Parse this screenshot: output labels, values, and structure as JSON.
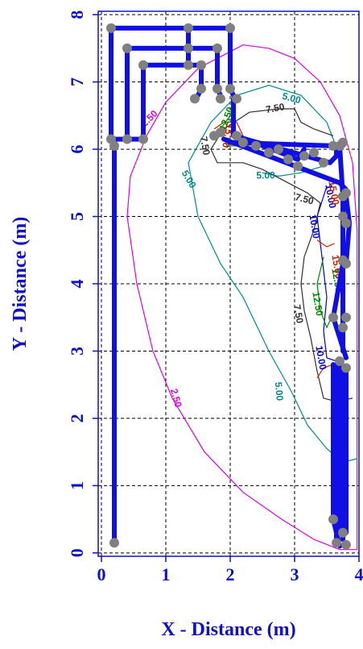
{
  "chart_data": {
    "type": "contour",
    "title": "",
    "xlabel": "X - Distance (m)",
    "ylabel": "Y - Distance (m)",
    "xlim": [
      -0.05,
      4.0
    ],
    "ylim": [
      -0.05,
      8.05
    ],
    "x_ticks": [
      "0",
      "1",
      "2",
      "3",
      "4"
    ],
    "y_ticks": [
      "0",
      "1",
      "2",
      "3",
      "4",
      "5",
      "6",
      "7",
      "8"
    ],
    "grid": true,
    "grid_style": "dashed",
    "colors": {
      "axis": "#1010c8",
      "wire": "#1010e6",
      "node": "#808080",
      "grid": "#000000",
      "contour_2_5": "#e000e0",
      "contour_5_0": "#008b8b",
      "contour_7_5": "#303030",
      "contour_10_0": "#0000dd",
      "contour_12_5": "#008800",
      "contour_15_0": "#cc2200"
    },
    "contour_levels": [
      "2.50",
      "5.00",
      "7.50",
      "10.00",
      "12.50",
      "15.00"
    ],
    "contours": [
      {
        "level": "2.50",
        "color_key": "contour_2_5",
        "points": [
          [
            2.2,
            7.55
          ],
          [
            2.6,
            7.5
          ],
          [
            3.0,
            7.35
          ],
          [
            3.4,
            7.0
          ],
          [
            3.7,
            6.5
          ],
          [
            3.9,
            5.8
          ],
          [
            3.97,
            4.8
          ],
          [
            3.97,
            3.0
          ],
          [
            3.97,
            0.05
          ],
          [
            3.7,
            0.05
          ],
          [
            3.3,
            0.2
          ],
          [
            2.8,
            0.5
          ],
          [
            2.2,
            0.9
          ],
          [
            1.6,
            1.5
          ],
          [
            1.1,
            2.3
          ],
          [
            0.8,
            3.0
          ],
          [
            0.55,
            4.0
          ],
          [
            0.4,
            5.0
          ],
          [
            0.45,
            5.6
          ],
          [
            0.7,
            6.2
          ],
          [
            1.0,
            6.7
          ],
          [
            1.5,
            7.2
          ],
          [
            2.2,
            7.55
          ]
        ]
      },
      {
        "level": "5.00",
        "color_key": "contour_5_0",
        "points": [
          [
            3.7,
            5.9
          ],
          [
            3.5,
            6.4
          ],
          [
            3.1,
            6.8
          ],
          [
            2.6,
            6.95
          ],
          [
            2.1,
            6.8
          ],
          [
            1.7,
            6.4
          ],
          [
            1.35,
            5.8
          ],
          [
            1.5,
            5.0
          ],
          [
            1.85,
            4.3
          ],
          [
            2.2,
            3.8
          ],
          [
            2.6,
            3.0
          ],
          [
            2.95,
            2.4
          ],
          [
            3.2,
            1.9
          ],
          [
            3.5,
            1.55
          ],
          [
            3.75,
            1.35
          ],
          [
            3.97,
            1.4
          ]
        ]
      },
      {
        "level": "5.00",
        "color_key": "contour_5_0",
        "points": [
          [
            2.5,
            5.65
          ],
          [
            2.75,
            5.6
          ],
          [
            3.1,
            5.65
          ],
          [
            3.45,
            5.75
          ]
        ]
      },
      {
        "level": "7.50",
        "color_key": "contour_7_5",
        "points": [
          [
            3.6,
            6.2
          ],
          [
            3.3,
            6.3
          ],
          [
            3.1,
            6.4
          ],
          [
            3.0,
            6.6
          ],
          [
            2.75,
            6.6
          ],
          [
            2.3,
            6.55
          ],
          [
            1.9,
            6.3
          ],
          [
            1.7,
            6.0
          ],
          [
            1.8,
            5.8
          ],
          [
            2.0,
            5.8
          ],
          [
            2.2,
            5.8
          ],
          [
            2.5,
            5.7
          ],
          [
            2.9,
            5.5
          ],
          [
            3.2,
            5.35
          ],
          [
            3.4,
            5.2
          ],
          [
            3.3,
            4.8
          ],
          [
            3.15,
            4.4
          ],
          [
            3.1,
            4.0
          ],
          [
            3.15,
            3.6
          ],
          [
            3.25,
            3.2
          ],
          [
            3.35,
            2.7
          ],
          [
            3.45,
            2.3
          ],
          [
            3.65,
            2.25
          ],
          [
            3.9,
            2.3
          ]
        ]
      },
      {
        "level": "10.00",
        "color_key": "contour_10_0",
        "points": [
          [
            3.5,
            5.45
          ],
          [
            3.35,
            5.0
          ],
          [
            3.4,
            4.6
          ],
          [
            3.45,
            4.2
          ],
          [
            3.5,
            3.8
          ],
          [
            3.45,
            3.3
          ],
          [
            3.5,
            2.9
          ],
          [
            3.65,
            2.85
          ]
        ]
      },
      {
        "level": "12.50",
        "color_key": "contour_12_5",
        "points": [
          [
            2.0,
            6.5
          ],
          [
            1.85,
            6.3
          ],
          [
            1.95,
            6.05
          ],
          [
            2.2,
            6.05
          ]
        ]
      },
      {
        "level": "12.50",
        "color_key": "contour_12_5",
        "points": [
          [
            3.45,
            4.4
          ],
          [
            3.35,
            4.0
          ],
          [
            3.4,
            3.6
          ],
          [
            3.5,
            3.35
          ],
          [
            3.62,
            3.6
          ]
        ]
      },
      {
        "level": "15.00",
        "color_key": "contour_15_0",
        "points": [
          [
            1.75,
            6.3
          ],
          [
            1.9,
            6.4
          ],
          [
            2.1,
            6.4
          ],
          [
            2.2,
            6.2
          ]
        ]
      },
      {
        "level": "15.00",
        "color_key": "contour_15_0",
        "points": [
          [
            3.35,
            4.65
          ],
          [
            3.5,
            4.55
          ],
          [
            3.62,
            4.6
          ]
        ]
      },
      {
        "level": "15.00",
        "color_key": "contour_15_0",
        "points": [
          [
            3.35,
            2.6
          ],
          [
            3.45,
            2.75
          ],
          [
            3.6,
            2.8
          ]
        ]
      }
    ],
    "contour_text": [
      {
        "text": "2.50",
        "x": 0.75,
        "y": 6.45,
        "angle": -45,
        "color_key": "contour_2_5"
      },
      {
        "text": "2.50",
        "x": 1.15,
        "y": 2.3,
        "angle": 75,
        "color_key": "contour_2_5"
      },
      {
        "text": "5.00",
        "x": 2.95,
        "y": 6.75,
        "angle": 15,
        "color_key": "contour_5_0"
      },
      {
        "text": "5.00",
        "x": 1.35,
        "y": 5.55,
        "angle": 60,
        "color_key": "contour_5_0"
      },
      {
        "text": "5.00",
        "x": 2.55,
        "y": 5.6,
        "angle": 0,
        "color_key": "contour_5_0"
      },
      {
        "text": "5.00",
        "x": 2.75,
        "y": 2.4,
        "angle": 85,
        "color_key": "contour_5_0"
      },
      {
        "text": "7.50",
        "x": 2.7,
        "y": 6.6,
        "angle": -10,
        "color_key": "contour_7_5"
      },
      {
        "text": "7.50",
        "x": 1.6,
        "y": 6.05,
        "angle": 80,
        "color_key": "contour_7_5"
      },
      {
        "text": "7.50",
        "x": 3.15,
        "y": 5.25,
        "angle": 15,
        "color_key": "contour_7_5"
      },
      {
        "text": "7.50",
        "x": 3.05,
        "y": 3.55,
        "angle": 80,
        "color_key": "contour_7_5"
      },
      {
        "text": "10.00",
        "x": 3.3,
        "y": 4.85,
        "angle": 80,
        "color_key": "contour_10_0"
      },
      {
        "text": "10.00",
        "x": 3.4,
        "y": 2.9,
        "angle": 80,
        "color_key": "contour_10_0"
      },
      {
        "text": "10.00",
        "x": 3.55,
        "y": 5.3,
        "angle": 80,
        "color_key": "contour_10_0"
      },
      {
        "text": "12.50",
        "x": 1.95,
        "y": 6.45,
        "angle": -70,
        "color_key": "contour_12_5"
      },
      {
        "text": "12.50",
        "x": 3.35,
        "y": 3.7,
        "angle": 80,
        "color_key": "contour_12_5"
      },
      {
        "text": "12.50",
        "x": 3.65,
        "y": 4.05,
        "angle": 80,
        "color_key": "contour_12_5"
      },
      {
        "text": "15.00",
        "x": 1.95,
        "y": 6.2,
        "angle": 100,
        "color_key": "contour_15_0"
      },
      {
        "text": "15.00",
        "x": 3.6,
        "y": 5.35,
        "angle": 80,
        "color_key": "contour_15_0"
      },
      {
        "text": "15.00",
        "x": 3.65,
        "y": 4.25,
        "angle": 80,
        "color_key": "contour_15_0"
      },
      {
        "text": "15.00",
        "x": 3.65,
        "y": 2.5,
        "angle": 80,
        "color_key": "contour_15_0"
      }
    ],
    "wire_paths": [
      [
        [
          0.2,
          0.15
        ],
        [
          0.2,
          6.05
        ]
      ],
      [
        [
          0.15,
          6.15
        ],
        [
          0.15,
          7.8
        ],
        [
          2.0,
          7.8
        ],
        [
          2.0,
          6.9
        ],
        [
          2.05,
          6.8
        ]
      ],
      [
        [
          0.4,
          6.15
        ],
        [
          0.4,
          7.5
        ],
        [
          1.8,
          7.5
        ],
        [
          1.8,
          6.9
        ],
        [
          1.85,
          6.8
        ]
      ],
      [
        [
          0.65,
          6.15
        ],
        [
          0.65,
          7.25
        ],
        [
          1.55,
          7.25
        ],
        [
          1.55,
          6.9
        ],
        [
          1.5,
          6.8
        ]
      ],
      [
        [
          1.35,
          7.8
        ],
        [
          1.35,
          7.5
        ],
        [
          1.35,
          7.25
        ]
      ],
      [
        [
          0.15,
          6.15
        ],
        [
          0.65,
          6.15
        ]
      ],
      [
        [
          2.05,
          6.75
        ],
        [
          2.05,
          6.2
        ],
        [
          3.55,
          5.8
        ],
        [
          3.65,
          5.9
        ],
        [
          3.65,
          6.05
        ]
      ],
      [
        [
          2.0,
          6.1
        ],
        [
          3.6,
          6.05
        ],
        [
          3.75,
          6.05
        ]
      ],
      [
        [
          2.1,
          6.2
        ],
        [
          3.05,
          5.85
        ],
        [
          3.15,
          6.0
        ]
      ],
      [
        [
          1.9,
          6.15
        ],
        [
          3.7,
          5.5
        ],
        [
          3.8,
          5.4
        ]
      ],
      [
        [
          3.7,
          6.05
        ],
        [
          3.75,
          5.3
        ],
        [
          3.75,
          3.0
        ]
      ],
      [
        [
          3.8,
          5.3
        ],
        [
          3.85,
          4.9
        ],
        [
          3.8,
          4.3
        ]
      ],
      [
        [
          3.75,
          4.3
        ],
        [
          3.6,
          3.5
        ],
        [
          3.8,
          2.9
        ]
      ],
      [
        [
          3.6,
          2.8
        ],
        [
          3.6,
          0.5
        ],
        [
          3.7,
          0.1
        ]
      ],
      [
        [
          3.65,
          2.8
        ],
        [
          3.65,
          0.15
        ]
      ],
      [
        [
          3.7,
          2.8
        ],
        [
          3.7,
          0.3
        ]
      ],
      [
        [
          3.75,
          2.7
        ],
        [
          3.75,
          0.2
        ]
      ],
      [
        [
          3.8,
          2.7
        ],
        [
          3.8,
          0.3
        ]
      ]
    ],
    "nodes": [
      [
        0.2,
        0.15
      ],
      [
        0.15,
        6.15
      ],
      [
        0.2,
        6.05
      ],
      [
        0.4,
        6.15
      ],
      [
        0.65,
        6.15
      ],
      [
        0.15,
        7.8
      ],
      [
        1.35,
        7.8
      ],
      [
        2.0,
        7.8
      ],
      [
        0.4,
        7.5
      ],
      [
        1.35,
        7.5
      ],
      [
        1.8,
        7.5
      ],
      [
        0.65,
        7.25
      ],
      [
        1.35,
        7.25
      ],
      [
        1.55,
        7.25
      ],
      [
        1.45,
        6.75
      ],
      [
        1.55,
        6.9
      ],
      [
        1.8,
        6.9
      ],
      [
        1.85,
        6.75
      ],
      [
        2.0,
        6.9
      ],
      [
        2.1,
        6.75
      ],
      [
        1.75,
        6.2
      ],
      [
        1.85,
        6.25
      ],
      [
        2.1,
        6.2
      ],
      [
        2.2,
        6.1
      ],
      [
        2.4,
        6.05
      ],
      [
        2.6,
        5.95
      ],
      [
        2.75,
        6.0
      ],
      [
        2.9,
        5.85
      ],
      [
        3.05,
        5.75
      ],
      [
        3.15,
        5.9
      ],
      [
        3.3,
        5.95
      ],
      [
        3.45,
        5.8
      ],
      [
        3.6,
        6.05
      ],
      [
        3.7,
        6.05
      ],
      [
        3.75,
        6.1
      ],
      [
        3.75,
        5.3
      ],
      [
        3.8,
        5.35
      ],
      [
        3.75,
        5.0
      ],
      [
        3.8,
        4.9
      ],
      [
        3.75,
        4.35
      ],
      [
        3.8,
        4.3
      ],
      [
        3.6,
        3.5
      ],
      [
        3.8,
        3.5
      ],
      [
        3.75,
        3.35
      ],
      [
        3.7,
        2.85
      ],
      [
        3.8,
        2.75
      ],
      [
        3.6,
        0.5
      ],
      [
        3.75,
        0.3
      ],
      [
        3.65,
        0.15
      ],
      [
        3.8,
        0.12
      ]
    ]
  }
}
